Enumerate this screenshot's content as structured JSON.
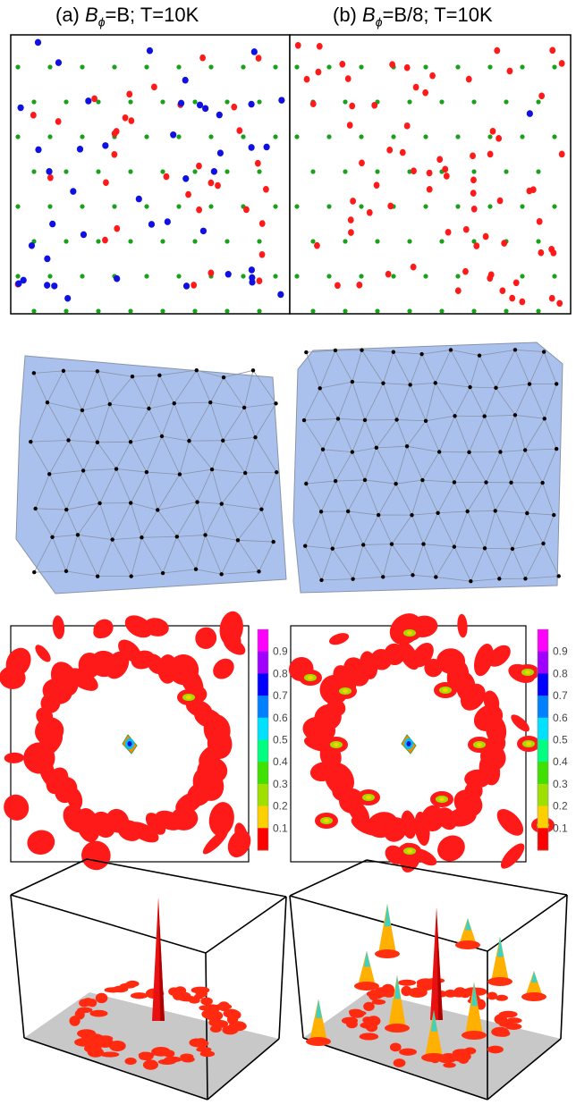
{
  "titles": [
    {
      "label": "(a)",
      "symbol": "B",
      "sub": "ϕ",
      "rest": "=B; T=10K"
    },
    {
      "label": "(b)",
      "symbol": "B",
      "sub": "ϕ",
      "rest": "=B/8; T=10K"
    }
  ],
  "colors": {
    "green": "#1aa01a",
    "red": "#ff1a1a",
    "blue": "#1010e0",
    "triangulation_fill": "#a9c1ec",
    "triangulation_edge": "#8a94a8",
    "plane": "#c8c8c8"
  },
  "colorbar": {
    "ticks": [
      "0.9",
      "0.8",
      "0.7",
      "0.6",
      "0.5",
      "0.4",
      "0.3",
      "0.2",
      "0.1"
    ],
    "colors": [
      "#ff00ff",
      "#a000ff",
      "#0000ff",
      "#0080ff",
      "#00e0ff",
      "#00ff80",
      "#40e000",
      "#a0e000",
      "#ffd000",
      "#ff0000"
    ]
  }
}
